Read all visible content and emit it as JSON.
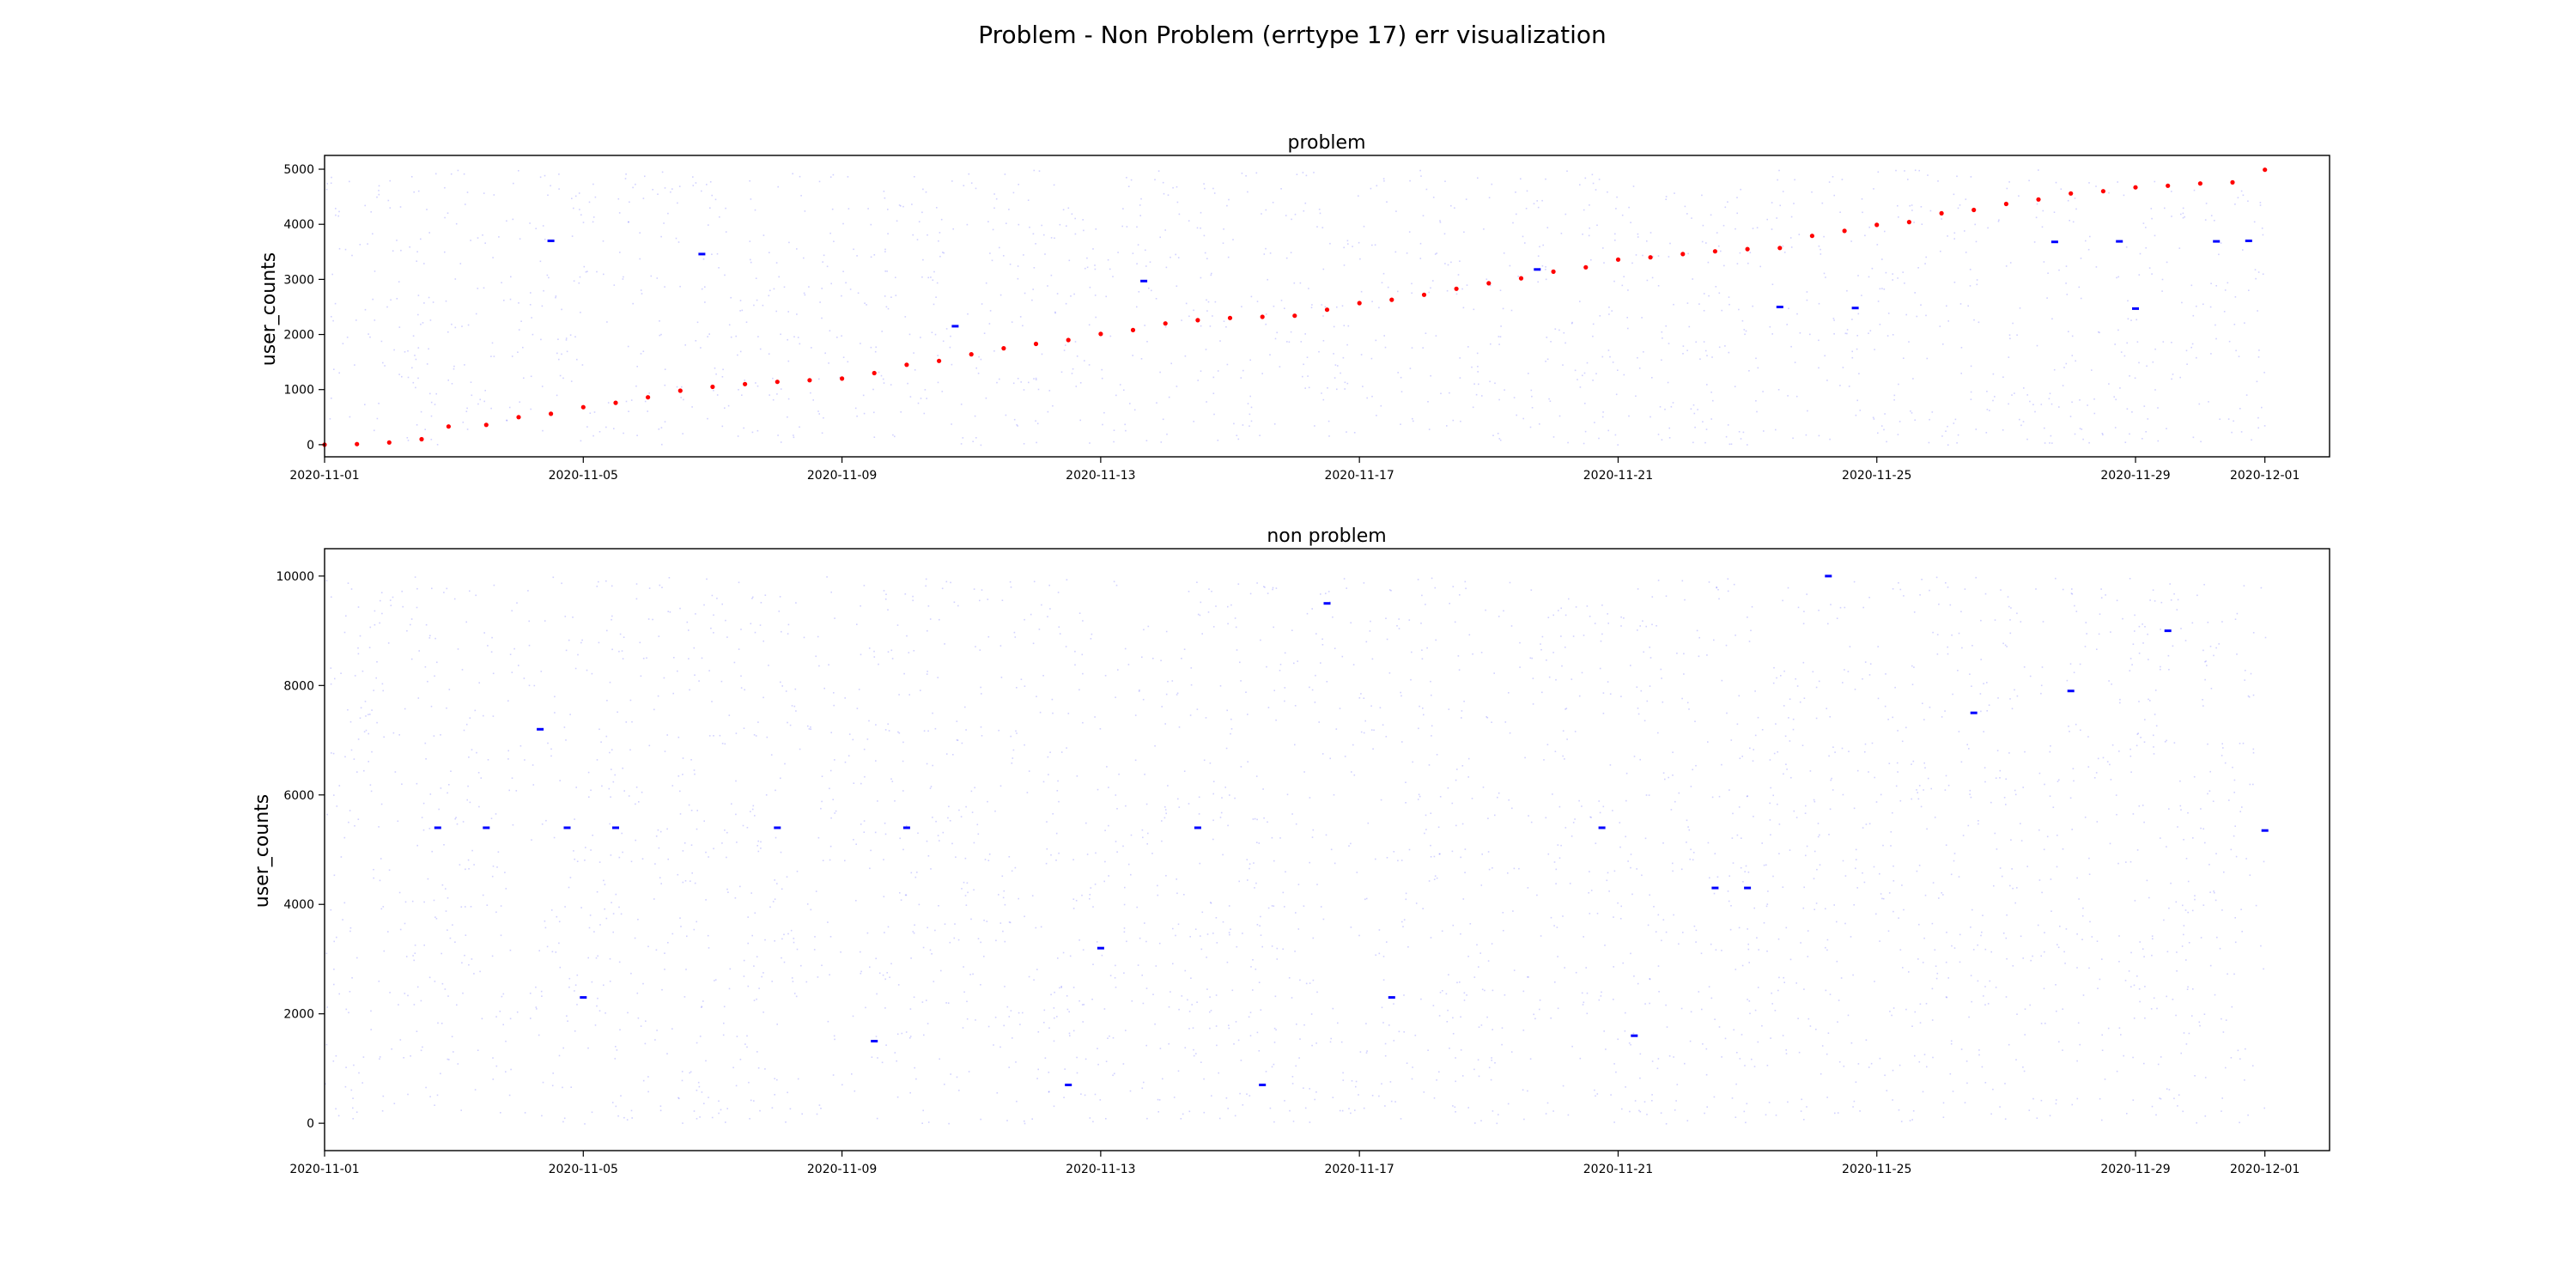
{
  "figure": {
    "title": "Problem - Non Problem (errtype 17)  err visualization"
  },
  "chart_data": [
    {
      "type": "scatter",
      "title": "problem",
      "xlabel": "",
      "ylabel": "user_counts",
      "xlim": [
        "2020-11-01",
        "2020-12-02"
      ],
      "ylim": [
        -220,
        5250
      ],
      "xticks": [
        "2020-11-01",
        "2020-11-05",
        "2020-11-09",
        "2020-11-13",
        "2020-11-17",
        "2020-11-21",
        "2020-11-25",
        "2020-11-29",
        "2020-12-01"
      ],
      "yticks": [
        0,
        1000,
        2000,
        3000,
        4000,
        5000
      ],
      "grid": false,
      "series": [
        {
          "role": "problem errors",
          "color": "#ff0000",
          "points": [
            [
              "2020-11-01T00:00",
              0
            ],
            [
              "2020-11-01T12:00",
              10
            ],
            [
              "2020-11-02T00:00",
              40
            ],
            [
              "2020-11-02T12:00",
              100
            ],
            [
              "2020-11-02T22:00",
              330
            ],
            [
              "2020-11-03T12:00",
              360
            ],
            [
              "2020-11-04T00:00",
              500
            ],
            [
              "2020-11-04T12:00",
              560
            ],
            [
              "2020-11-05T00:00",
              680
            ],
            [
              "2020-11-05T12:00",
              760
            ],
            [
              "2020-11-06T00:00",
              860
            ],
            [
              "2020-11-06T12:00",
              980
            ],
            [
              "2020-11-07T00:00",
              1050
            ],
            [
              "2020-11-07T12:00",
              1100
            ],
            [
              "2020-11-08T00:00",
              1140
            ],
            [
              "2020-11-08T12:00",
              1170
            ],
            [
              "2020-11-09T00:00",
              1200
            ],
            [
              "2020-11-09T12:00",
              1300
            ],
            [
              "2020-11-10T00:00",
              1450
            ],
            [
              "2020-11-10T12:00",
              1520
            ],
            [
              "2020-11-11T00:00",
              1640
            ],
            [
              "2020-11-11T12:00",
              1750
            ],
            [
              "2020-11-12T00:00",
              1830
            ],
            [
              "2020-11-12T12:00",
              1900
            ],
            [
              "2020-11-13T00:00",
              2010
            ],
            [
              "2020-11-13T12:00",
              2080
            ],
            [
              "2020-11-14T00:00",
              2200
            ],
            [
              "2020-11-14T12:00",
              2260
            ],
            [
              "2020-11-15T00:00",
              2300
            ],
            [
              "2020-11-15T12:00",
              2320
            ],
            [
              "2020-11-16T00:00",
              2340
            ],
            [
              "2020-11-16T12:00",
              2450
            ],
            [
              "2020-11-17T00:00",
              2570
            ],
            [
              "2020-11-17T12:00",
              2630
            ],
            [
              "2020-11-18T00:00",
              2720
            ],
            [
              "2020-11-18T12:00",
              2830
            ],
            [
              "2020-11-19T00:00",
              2930
            ],
            [
              "2020-11-19T12:00",
              3020
            ],
            [
              "2020-11-20T00:00",
              3140
            ],
            [
              "2020-11-20T12:00",
              3220
            ],
            [
              "2020-11-21T00:00",
              3360
            ],
            [
              "2020-11-21T12:00",
              3400
            ],
            [
              "2020-11-22T00:00",
              3460
            ],
            [
              "2020-11-22T12:00",
              3510
            ],
            [
              "2020-11-23T00:00",
              3550
            ],
            [
              "2020-11-23T12:00",
              3570
            ],
            [
              "2020-11-24T00:00",
              3790
            ],
            [
              "2020-11-24T12:00",
              3880
            ],
            [
              "2020-11-25T00:00",
              3990
            ],
            [
              "2020-11-25T12:00",
              4040
            ],
            [
              "2020-11-26T00:00",
              4200
            ],
            [
              "2020-11-26T12:00",
              4260
            ],
            [
              "2020-11-27T00:00",
              4370
            ],
            [
              "2020-11-27T12:00",
              4450
            ],
            [
              "2020-11-28T00:00",
              4560
            ],
            [
              "2020-11-28T12:00",
              4600
            ],
            [
              "2020-11-29T00:00",
              4670
            ],
            [
              "2020-11-29T12:00",
              4700
            ],
            [
              "2020-11-30T00:00",
              4740
            ],
            [
              "2020-11-30T12:00",
              4760
            ],
            [
              "2020-12-01T00:00",
              4990
            ]
          ]
        },
        {
          "role": "all errors",
          "color": "#0000ff",
          "points": [
            [
              "2020-11-04T12:00",
              3700
            ],
            [
              "2020-11-06T20:00",
              3460
            ],
            [
              "2020-11-10T18:00",
              2150
            ],
            [
              "2020-11-13T16:00",
              2970
            ],
            [
              "2020-11-19T18:00",
              3180
            ],
            [
              "2020-11-23T12:00",
              2500
            ],
            [
              "2020-11-24T16:00",
              2480
            ],
            [
              "2020-11-27T18:00",
              3680
            ],
            [
              "2020-11-28T18:00",
              3690
            ],
            [
              "2020-11-29T00:00",
              2470
            ],
            [
              "2020-11-30T06:00",
              3690
            ],
            [
              "2020-11-30T18:00",
              3700
            ]
          ]
        }
      ]
    },
    {
      "type": "scatter",
      "title": "non problem",
      "xlabel": "",
      "ylabel": "user_counts",
      "xlim": [
        "2020-11-01",
        "2020-12-02"
      ],
      "ylim": [
        -500,
        10500
      ],
      "xticks": [
        "2020-11-01",
        "2020-11-05",
        "2020-11-09",
        "2020-11-13",
        "2020-11-17",
        "2020-11-21",
        "2020-11-25",
        "2020-11-29",
        "2020-12-01"
      ],
      "yticks": [
        0,
        2000,
        4000,
        6000,
        8000,
        10000
      ],
      "grid": false,
      "series": [
        {
          "role": "all errors",
          "color": "#0000ff",
          "points": [
            [
              "2020-11-02T18:00",
              5400
            ],
            [
              "2020-11-03T12:00",
              5400
            ],
            [
              "2020-11-04T08:00",
              7200
            ],
            [
              "2020-11-04T18:00",
              5400
            ],
            [
              "2020-11-05T00:00",
              2300
            ],
            [
              "2020-11-05T12:00",
              5400
            ],
            [
              "2020-11-08T00:00",
              5400
            ],
            [
              "2020-11-09T12:00",
              1500
            ],
            [
              "2020-11-10T00:00",
              5400
            ],
            [
              "2020-11-12T12:00",
              700
            ],
            [
              "2020-11-13T00:00",
              3200
            ],
            [
              "2020-11-14T12:00",
              5400
            ],
            [
              "2020-11-15T12:00",
              700
            ],
            [
              "2020-11-16T12:00",
              9500
            ],
            [
              "2020-11-17T12:00",
              2300
            ],
            [
              "2020-11-20T18:00",
              5400
            ],
            [
              "2020-11-21T06:00",
              1600
            ],
            [
              "2020-11-22T12:00",
              4300
            ],
            [
              "2020-11-23T00:00",
              4300
            ],
            [
              "2020-11-24T06:00",
              10000
            ],
            [
              "2020-11-26T12:00",
              7500
            ],
            [
              "2020-11-28T00:00",
              7900
            ],
            [
              "2020-11-29T12:00",
              9000
            ],
            [
              "2020-12-01T00:00",
              5350
            ]
          ]
        }
      ]
    }
  ]
}
